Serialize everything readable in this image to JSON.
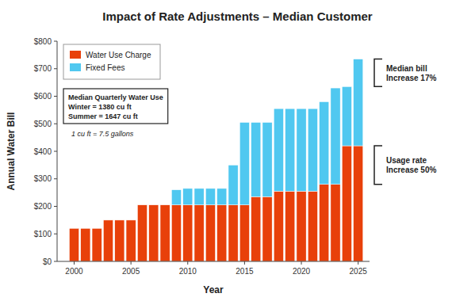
{
  "chart_data": {
    "type": "bar",
    "stacked": true,
    "title": "Impact of Rate Adjustments – Median Customer",
    "x_label": "Year",
    "y_label": "Annual Water Bill",
    "x": [
      2000,
      2001,
      2002,
      2003,
      2004,
      2005,
      2006,
      2007,
      2008,
      2009,
      2010,
      2011,
      2012,
      2013,
      2014,
      2015,
      2016,
      2017,
      2018,
      2019,
      2020,
      2021,
      2022,
      2023,
      2024,
      2025
    ],
    "xlim": [
      1998.5,
      2026.0
    ],
    "xticks": [
      2000,
      2005,
      2010,
      2015,
      2020,
      2025
    ],
    "ylim": [
      0,
      800
    ],
    "yticks": [
      {
        "value": 0,
        "label": "$0"
      },
      {
        "value": 100,
        "label": "$100"
      },
      {
        "value": 200,
        "label": "$200"
      },
      {
        "value": 300,
        "label": "$300"
      },
      {
        "value": 400,
        "label": "$400"
      },
      {
        "value": 500,
        "label": "$500"
      },
      {
        "value": 600,
        "label": "$600"
      },
      {
        "value": 700,
        "label": "$700"
      },
      {
        "value": 800,
        "label": "$800"
      }
    ],
    "series": [
      {
        "name": "Water Use Charge",
        "color": "#e8400a",
        "values": [
          120,
          120,
          120,
          150,
          150,
          150,
          205,
          205,
          205,
          205,
          205,
          205,
          205,
          205,
          205,
          205,
          235,
          235,
          255,
          255,
          255,
          255,
          280,
          280,
          420,
          420
        ]
      },
      {
        "name": "Fixed Fees",
        "color": "#50c8f0",
        "values": [
          0,
          0,
          0,
          0,
          0,
          0,
          0,
          0,
          0,
          55,
          60,
          60,
          60,
          60,
          145,
          300,
          270,
          270,
          300,
          300,
          300,
          300,
          300,
          350,
          215,
          315
        ]
      }
    ],
    "legend": "upper left",
    "grid": false,
    "annotations": [
      "Median Quarterly Water Use",
      "Winter = 1380 cu ft",
      "Summer = 1647 cu ft",
      "1 cu ft = 7.5 gallons",
      "Median bill\nIncrease 17%",
      "Usage rate\nIncrease 50%"
    ]
  }
}
